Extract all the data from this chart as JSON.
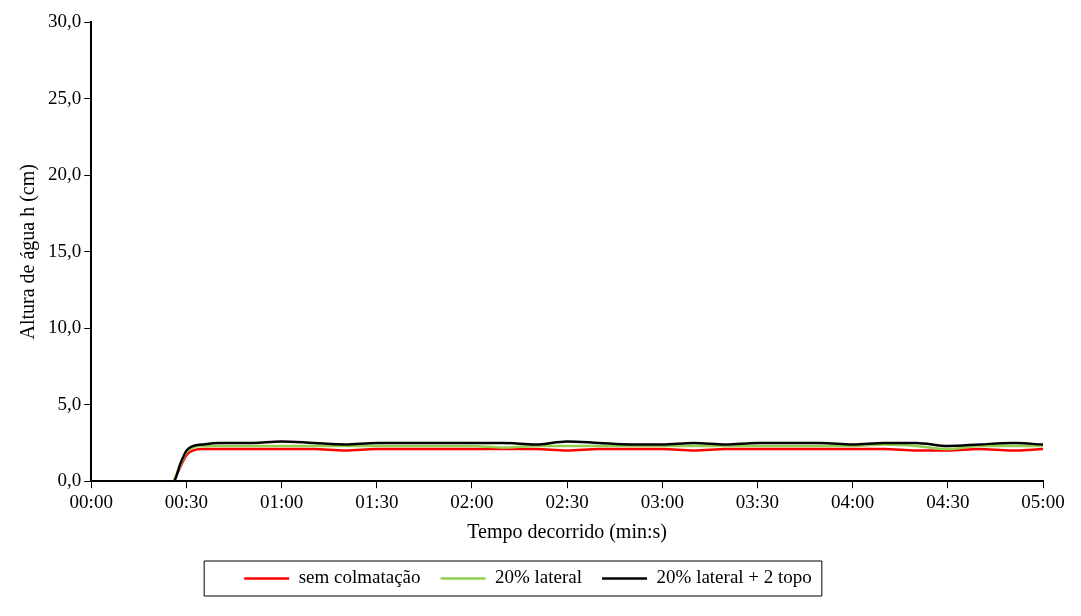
{
  "chart_data": {
    "type": "line",
    "xlabel": "Tempo decorrido (min:s)",
    "ylabel": "Altura de água h (cm)",
    "x": [
      0,
      10,
      20,
      24,
      26,
      28,
      30,
      32,
      35,
      40,
      50,
      60,
      70,
      80,
      90,
      100,
      110,
      120,
      130,
      140,
      150,
      160,
      170,
      180,
      190,
      200,
      210,
      220,
      230,
      240,
      250,
      260,
      270,
      280,
      290,
      300
    ],
    "series": [
      {
        "name": "sem colmatação",
        "color": "#ff0000",
        "values": [
          null,
          null,
          null,
          null,
          0,
          0.9,
          1.7,
          2.0,
          2.1,
          2.1,
          2.1,
          2.1,
          2.1,
          2.0,
          2.1,
          2.1,
          2.1,
          2.1,
          2.1,
          2.1,
          2.0,
          2.1,
          2.1,
          2.1,
          2.0,
          2.1,
          2.1,
          2.1,
          2.1,
          2.1,
          2.1,
          2.0,
          2.0,
          2.1,
          2.0,
          2.1
        ]
      },
      {
        "name": "20% lateral",
        "color": "#92d050",
        "values": [
          null,
          null,
          null,
          null,
          0,
          1.0,
          1.9,
          2.2,
          2.3,
          2.3,
          2.3,
          2.3,
          2.3,
          2.3,
          2.3,
          2.3,
          2.3,
          2.3,
          2.2,
          2.3,
          2.3,
          2.3,
          2.3,
          2.3,
          2.3,
          2.3,
          2.3,
          2.3,
          2.3,
          2.3,
          2.4,
          2.3,
          2.1,
          2.3,
          2.3,
          2.3
        ]
      },
      {
        "name": "20% lateral + 2 topo",
        "color": "#000000",
        "values": [
          0,
          0,
          0,
          0,
          0,
          1.1,
          2.0,
          2.3,
          2.4,
          2.5,
          2.5,
          2.6,
          2.5,
          2.4,
          2.5,
          2.5,
          2.5,
          2.5,
          2.5,
          2.4,
          2.6,
          2.5,
          2.4,
          2.4,
          2.5,
          2.4,
          2.5,
          2.5,
          2.5,
          2.4,
          2.5,
          2.5,
          2.3,
          2.4,
          2.5,
          2.4
        ]
      }
    ],
    "xlim": [
      0,
      300
    ],
    "xticks": [
      {
        "value": 0,
        "label": "00:00"
      },
      {
        "value": 30,
        "label": "00:30"
      },
      {
        "value": 60,
        "label": "01:00"
      },
      {
        "value": 90,
        "label": "01:30"
      },
      {
        "value": 120,
        "label": "02:00"
      },
      {
        "value": 150,
        "label": "02:30"
      },
      {
        "value": 180,
        "label": "03:00"
      },
      {
        "value": 210,
        "label": "03:30"
      },
      {
        "value": 240,
        "label": "04:00"
      },
      {
        "value": 270,
        "label": "04:30"
      },
      {
        "value": 300,
        "label": "05:00"
      }
    ],
    "ylim": [
      0,
      30
    ],
    "yticks": [
      {
        "value": 0,
        "label": "0,0"
      },
      {
        "value": 5,
        "label": "5,0"
      },
      {
        "value": 10,
        "label": "10,0"
      },
      {
        "value": 15,
        "label": "15,0"
      },
      {
        "value": 20,
        "label": "20,0"
      },
      {
        "value": 25,
        "label": "25,0"
      },
      {
        "value": 30,
        "label": "30,0"
      }
    ],
    "grid": false,
    "legend": "bottom",
    "marker": "none",
    "line_style": "solid"
  }
}
